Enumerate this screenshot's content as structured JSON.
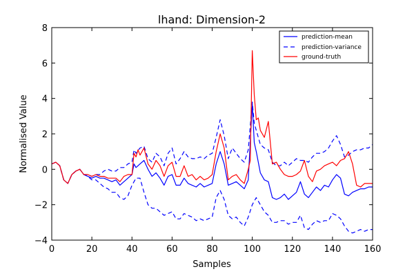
{
  "chart_data": {
    "type": "line",
    "title": "lhand: Dimension-2",
    "xlabel": "Samples",
    "ylabel": "Normalised Value",
    "xlim": [
      0,
      160
    ],
    "ylim": [
      -4,
      8
    ],
    "xticks": [
      "0",
      "20",
      "40",
      "60",
      "80",
      "100",
      "120",
      "140",
      "160"
    ],
    "yticks": [
      "−4",
      "−2",
      "0",
      "2",
      "4",
      "6",
      "8"
    ],
    "grid": false,
    "legend_position": "top-right",
    "colors": {
      "prediction-mean": "#0000ff",
      "prediction-variance": "#0000ff",
      "ground-truth": "#ff0000"
    },
    "series": [
      {
        "name": "prediction-mean",
        "style": "solid",
        "x": [
          0,
          2,
          4,
          6,
          8,
          10,
          12,
          14,
          16,
          18,
          20,
          22,
          24,
          26,
          28,
          30,
          32,
          34,
          36,
          38,
          40,
          41,
          42,
          44,
          46,
          48,
          50,
          52,
          54,
          56,
          58,
          60,
          62,
          64,
          66,
          68,
          70,
          72,
          74,
          76,
          78,
          80,
          82,
          84,
          86,
          88,
          90,
          92,
          94,
          96,
          98,
          100,
          101,
          102,
          104,
          106,
          108,
          110,
          112,
          114,
          116,
          118,
          120,
          122,
          124,
          126,
          128,
          130,
          132,
          134,
          136,
          138,
          140,
          142,
          144,
          146,
          148,
          150,
          152,
          154,
          156,
          158,
          160
        ],
        "y": [
          0.3,
          0.4,
          0.2,
          -0.6,
          -0.8,
          -0.3,
          -0.1,
          0.0,
          -0.3,
          -0.4,
          -0.5,
          -0.4,
          -0.5,
          -0.5,
          -0.6,
          -0.7,
          -0.6,
          -0.9,
          -0.7,
          -0.5,
          -0.3,
          0.3,
          0.1,
          0.3,
          0.5,
          0.0,
          -0.4,
          -0.2,
          -0.5,
          -0.9,
          -0.4,
          -0.3,
          -0.9,
          -0.9,
          -0.5,
          -0.8,
          -0.9,
          -1.0,
          -0.8,
          -1.0,
          -0.9,
          -0.8,
          0.3,
          1.0,
          0.3,
          -0.9,
          -0.8,
          -0.7,
          -0.9,
          -1.1,
          -0.6,
          3.7,
          1.5,
          1.0,
          -0.2,
          -0.6,
          -0.7,
          -1.6,
          -1.7,
          -1.6,
          -1.4,
          -1.7,
          -1.5,
          -1.3,
          -0.7,
          -1.4,
          -1.6,
          -1.3,
          -1.0,
          -1.2,
          -0.9,
          -1.0,
          -0.6,
          -0.3,
          -0.5,
          -1.4,
          -1.5,
          -1.3,
          -1.2,
          -1.1,
          -1.1,
          -1.0,
          -1.0
        ]
      },
      {
        "name": "prediction-variance",
        "style": "dashed",
        "x": [
          0,
          2,
          4,
          6,
          8,
          10,
          12,
          14,
          16,
          18,
          20,
          22,
          24,
          26,
          28,
          30,
          32,
          34,
          36,
          38,
          40,
          41,
          42,
          44,
          46,
          48,
          50,
          52,
          54,
          56,
          58,
          60,
          62,
          64,
          66,
          68,
          70,
          72,
          74,
          76,
          78,
          80,
          82,
          84,
          86,
          88,
          90,
          92,
          94,
          96,
          98,
          100,
          101,
          102,
          104,
          106,
          108,
          110,
          112,
          114,
          116,
          118,
          120,
          122,
          124,
          126,
          128,
          130,
          132,
          134,
          136,
          138,
          140,
          142,
          144,
          146,
          148,
          150,
          152,
          154,
          156,
          158,
          160
        ],
        "y": [
          0.3,
          0.4,
          0.2,
          -0.6,
          -0.8,
          -0.3,
          -0.1,
          0.0,
          -0.3,
          -0.3,
          -0.4,
          -0.3,
          -0.3,
          -0.1,
          0.0,
          -0.1,
          -0.1,
          0.1,
          0.1,
          0.3,
          0.4,
          1.1,
          0.9,
          1.2,
          1.3,
          0.6,
          0.4,
          0.9,
          0.7,
          0.2,
          0.9,
          1.2,
          0.3,
          0.6,
          1.0,
          0.7,
          0.6,
          0.6,
          0.7,
          0.6,
          0.8,
          0.9,
          1.8,
          2.8,
          1.9,
          0.6,
          1.2,
          0.9,
          0.6,
          0.4,
          1.1,
          3.8,
          2.6,
          2.2,
          1.4,
          1.2,
          1.1,
          0.4,
          0.2,
          0.2,
          0.4,
          0.2,
          0.4,
          0.6,
          0.5,
          0.5,
          0.4,
          0.7,
          0.9,
          0.9,
          1.0,
          1.2,
          1.6,
          1.9,
          1.4,
          0.7,
          0.8,
          1.0,
          1.1,
          1.1,
          1.2,
          1.2,
          1.4
        ]
      },
      {
        "name": "prediction-variance",
        "style": "dashed",
        "x": [
          0,
          2,
          4,
          6,
          8,
          10,
          12,
          14,
          16,
          18,
          20,
          22,
          24,
          26,
          28,
          30,
          32,
          34,
          36,
          38,
          40,
          42,
          44,
          46,
          48,
          50,
          52,
          54,
          56,
          58,
          60,
          62,
          64,
          66,
          68,
          70,
          72,
          74,
          76,
          78,
          80,
          82,
          84,
          86,
          88,
          90,
          92,
          94,
          96,
          98,
          100,
          102,
          104,
          106,
          108,
          110,
          112,
          114,
          116,
          118,
          120,
          122,
          124,
          126,
          128,
          130,
          132,
          134,
          136,
          138,
          140,
          142,
          144,
          146,
          148,
          150,
          152,
          154,
          156,
          158,
          160
        ],
        "y": [
          0.3,
          0.4,
          0.2,
          -0.6,
          -0.8,
          -0.3,
          -0.1,
          0.0,
          -0.3,
          -0.4,
          -0.6,
          -0.6,
          -0.8,
          -1.0,
          -1.1,
          -1.3,
          -1.3,
          -1.6,
          -1.7,
          -1.5,
          -0.9,
          -0.5,
          -0.5,
          -1.3,
          -2.0,
          -2.2,
          -2.2,
          -2.4,
          -2.6,
          -2.5,
          -2.4,
          -2.8,
          -2.8,
          -2.5,
          -2.6,
          -2.7,
          -2.9,
          -2.8,
          -2.9,
          -2.8,
          -2.7,
          -1.6,
          -1.2,
          -1.7,
          -2.6,
          -2.8,
          -2.7,
          -3.0,
          -3.2,
          -2.7,
          -2.0,
          -1.6,
          -2.0,
          -2.4,
          -2.6,
          -3.0,
          -3.0,
          -2.9,
          -2.9,
          -3.1,
          -3.0,
          -3.0,
          -2.6,
          -3.3,
          -3.4,
          -3.1,
          -2.9,
          -3.0,
          -2.9,
          -2.9,
          -2.5,
          -2.6,
          -2.8,
          -3.2,
          -3.5,
          -3.6,
          -3.5,
          -3.4,
          -3.5,
          -3.4,
          -3.4
        ]
      },
      {
        "name": "ground-truth",
        "style": "solid",
        "x": [
          0,
          2,
          4,
          6,
          8,
          10,
          12,
          14,
          16,
          18,
          20,
          22,
          24,
          26,
          28,
          30,
          32,
          34,
          36,
          38,
          40,
          41,
          42,
          43,
          44,
          46,
          48,
          50,
          52,
          54,
          56,
          58,
          60,
          62,
          64,
          66,
          68,
          70,
          72,
          74,
          76,
          78,
          80,
          82,
          84,
          86,
          88,
          90,
          92,
          94,
          96,
          98,
          99,
          100,
          101,
          102,
          103,
          104,
          106,
          108,
          110,
          112,
          114,
          116,
          118,
          120,
          122,
          124,
          126,
          128,
          130,
          132,
          134,
          136,
          138,
          140,
          142,
          144,
          146,
          148,
          150,
          152,
          154,
          156,
          158,
          160
        ],
        "y": [
          0.3,
          0.4,
          0.2,
          -0.6,
          -0.8,
          -0.3,
          -0.1,
          0.0,
          -0.3,
          -0.3,
          -0.4,
          -0.3,
          -0.4,
          -0.4,
          -0.5,
          -0.5,
          -0.5,
          -0.7,
          -0.4,
          -0.3,
          -0.3,
          0.9,
          0.7,
          1.1,
          0.8,
          1.2,
          0.3,
          0.0,
          0.5,
          0.2,
          -0.4,
          0.2,
          0.4,
          -0.4,
          -0.4,
          0.2,
          -0.4,
          -0.3,
          -0.6,
          -0.4,
          -0.6,
          -0.5,
          -0.3,
          1.0,
          2.0,
          1.2,
          -0.6,
          -0.4,
          -0.3,
          -0.6,
          -0.8,
          0.0,
          0.5,
          6.7,
          4.2,
          2.8,
          2.9,
          2.2,
          1.8,
          2.7,
          0.3,
          0.4,
          0.0,
          -0.3,
          -0.4,
          -0.4,
          -0.3,
          -0.1,
          0.5,
          -0.4,
          -0.7,
          -0.1,
          0.0,
          0.2,
          0.3,
          0.4,
          0.2,
          0.5,
          0.6,
          1.0,
          0.3,
          -0.9,
          -1.0,
          -0.8,
          -0.8,
          -0.8
        ]
      }
    ]
  }
}
